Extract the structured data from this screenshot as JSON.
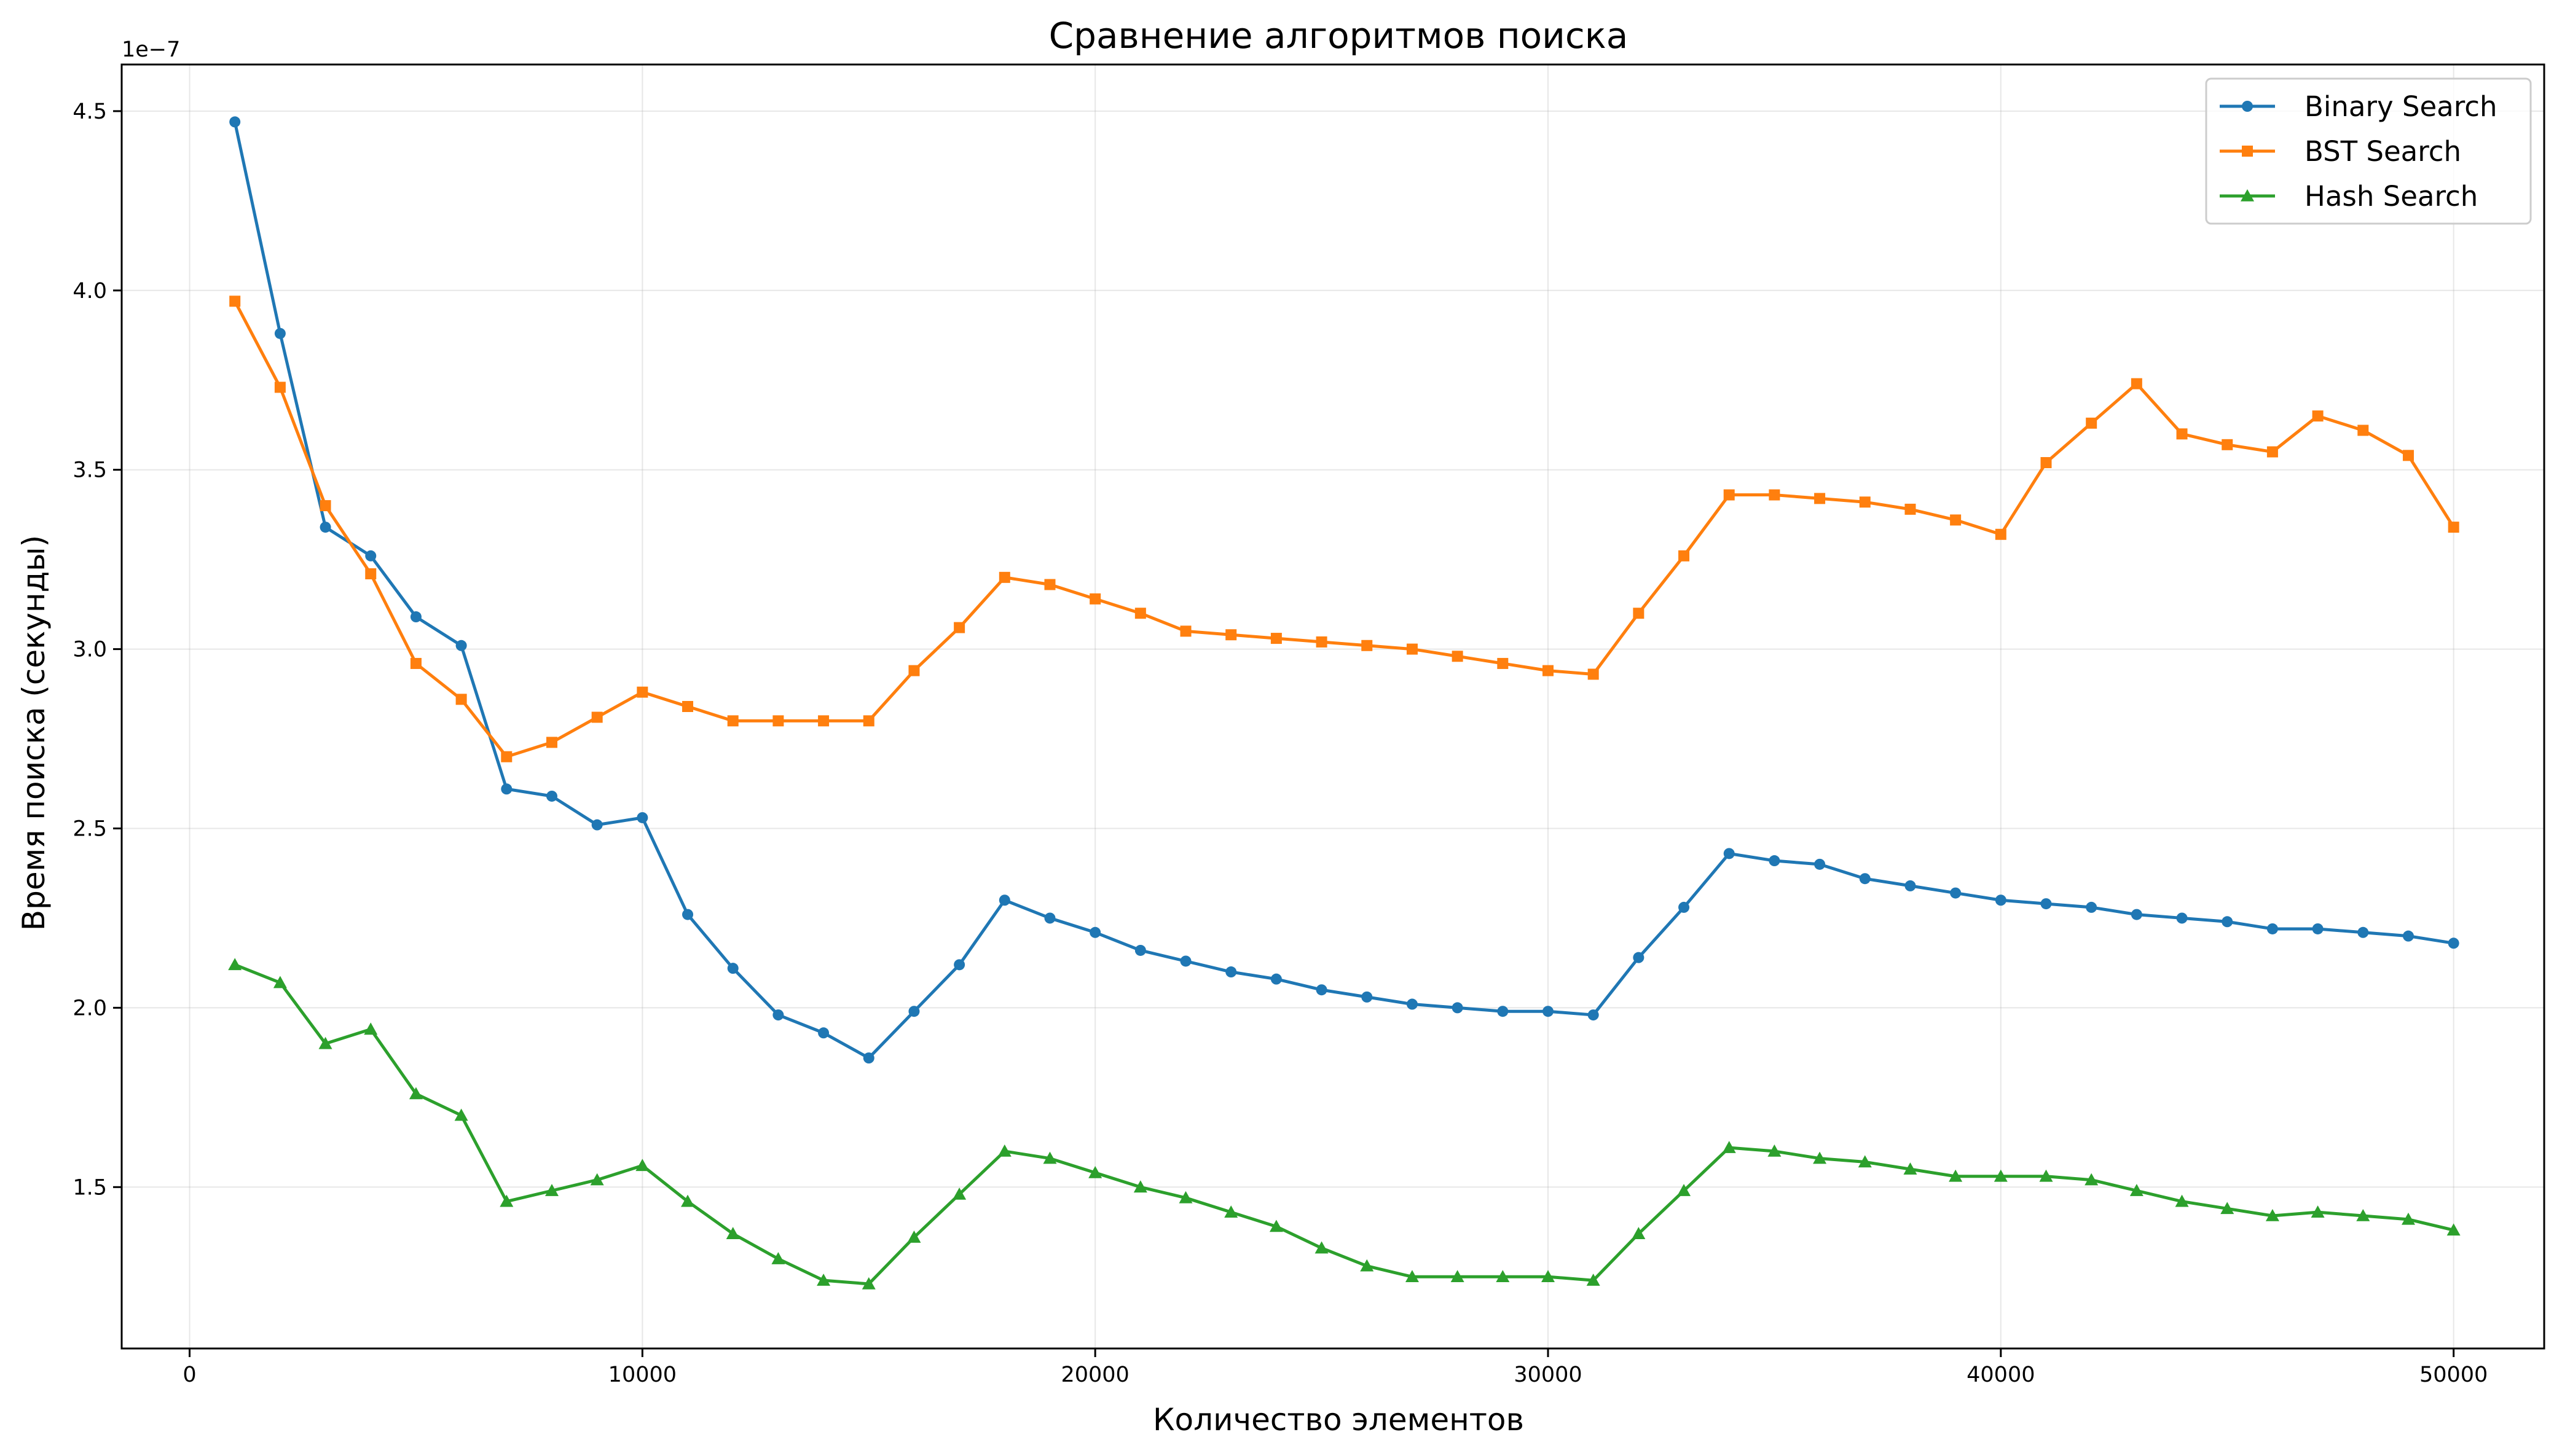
{
  "chart_data": {
    "type": "line",
    "title": "Сравнение алгоритмов поиска",
    "xlabel": "Количество элементов",
    "ylabel": "Время поиска (секунды)",
    "y_offset_label": "1e−7",
    "xlim": [
      -1500,
      52000
    ],
    "ylim": [
      1.05,
      4.63
    ],
    "x_ticks": [
      0,
      10000,
      20000,
      30000,
      40000,
      50000
    ],
    "x_tick_labels": [
      "0",
      "10000",
      "20000",
      "30000",
      "40000",
      "50000"
    ],
    "y_ticks": [
      1.5,
      2.0,
      2.5,
      3.0,
      3.5,
      4.0,
      4.5
    ],
    "y_tick_labels": [
      "1.5",
      "2.0",
      "2.5",
      "3.0",
      "3.5",
      "4.0",
      "4.5"
    ],
    "grid": true,
    "legend_position": "top-right",
    "x": [
      1000,
      2000,
      3000,
      4000,
      5000,
      6000,
      7000,
      8000,
      9000,
      10000,
      11000,
      12000,
      13000,
      14000,
      15000,
      16000,
      17000,
      18000,
      19000,
      20000,
      21000,
      22000,
      23000,
      24000,
      25000,
      26000,
      27000,
      28000,
      29000,
      30000,
      31000,
      32000,
      33000,
      34000,
      35000,
      36000,
      37000,
      38000,
      39000,
      40000,
      41000,
      42000,
      43000,
      44000,
      45000,
      46000,
      47000,
      48000,
      49000,
      50000
    ],
    "series": [
      {
        "name": "Binary Search",
        "color": "#1f77b4",
        "marker": "circle",
        "values": [
          4.47,
          3.88,
          3.34,
          3.26,
          3.09,
          3.01,
          2.61,
          2.59,
          2.51,
          2.53,
          2.26,
          2.11,
          1.98,
          1.93,
          1.86,
          1.99,
          2.12,
          2.3,
          2.25,
          2.21,
          2.16,
          2.13,
          2.1,
          2.08,
          2.05,
          2.03,
          2.01,
          2.0,
          1.99,
          1.99,
          1.98,
          2.14,
          2.28,
          2.43,
          2.41,
          2.4,
          2.36,
          2.34,
          2.32,
          2.3,
          2.29,
          2.28,
          2.26,
          2.25,
          2.24,
          2.22,
          2.22,
          2.21,
          2.2,
          2.18
        ]
      },
      {
        "name": "BST Search",
        "color": "#ff7f0e",
        "marker": "square",
        "values": [
          3.97,
          3.73,
          3.4,
          3.21,
          2.96,
          2.86,
          2.7,
          2.74,
          2.81,
          2.88,
          2.84,
          2.8,
          2.8,
          2.8,
          2.8,
          2.94,
          3.06,
          3.2,
          3.18,
          3.14,
          3.1,
          3.05,
          3.04,
          3.03,
          3.02,
          3.01,
          3.0,
          2.98,
          2.96,
          2.94,
          2.93,
          3.1,
          3.26,
          3.43,
          3.43,
          3.42,
          3.41,
          3.39,
          3.36,
          3.32,
          3.52,
          3.63,
          3.74,
          3.6,
          3.57,
          3.55,
          3.65,
          3.61,
          3.54,
          3.34
        ]
      },
      {
        "name": "Hash Search",
        "color": "#2ca02c",
        "marker": "triangle",
        "values": [
          2.12,
          2.07,
          1.9,
          1.94,
          1.76,
          1.7,
          1.46,
          1.49,
          1.52,
          1.56,
          1.46,
          1.37,
          1.3,
          1.24,
          1.23,
          1.36,
          1.48,
          1.6,
          1.58,
          1.54,
          1.5,
          1.47,
          1.43,
          1.39,
          1.33,
          1.28,
          1.25,
          1.25,
          1.25,
          1.25,
          1.24,
          1.37,
          1.49,
          1.61,
          1.6,
          1.58,
          1.57,
          1.55,
          1.53,
          1.53,
          1.53,
          1.52,
          1.49,
          1.46,
          1.44,
          1.42,
          1.43,
          1.42,
          1.41,
          1.38
        ]
      }
    ]
  }
}
